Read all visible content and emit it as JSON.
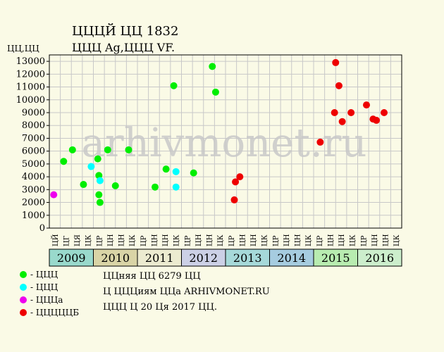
{
  "header": {
    "title": "ЦЦЦЙ ЦЦ 1832",
    "subtitle": "ЦЦЦ Ag,ЦЦЦ VF.",
    "y_unit": "ЦЦ,ЦЦ"
  },
  "watermark": "arhivmonet.ru",
  "legend": [
    {
      "label": "- ЦЦЦ",
      "color": "#00ee00"
    },
    {
      "label": "- ЦЦЦ",
      "color": "#00ffff"
    },
    {
      "label": "- ЦЦЦа",
      "color": "#ee00ee"
    },
    {
      "label": "- ЦЦЦЦЦБ",
      "color": "#ee0000"
    }
  ],
  "info": {
    "line1": "ЦЦняя ЦЦ 6279 ЦЦ",
    "line2": "Ц ЦЦЦиям ЦЦа ARHIVMONET.RU",
    "line3": "ЦЦЦ Ц 20 Ця 2017 ЦЦ."
  },
  "chart_data": {
    "type": "scatter",
    "ylim": [
      0,
      13500
    ],
    "yticks": [
      0,
      1000,
      2000,
      3000,
      4000,
      5000,
      6000,
      7000,
      8000,
      9000,
      10000,
      11000,
      12000,
      13000
    ],
    "months": [
      "ЦЙ",
      "ЦГ",
      "ЦЯ",
      "ЦК",
      "ЦР",
      "ЦН",
      "ЦН",
      "ЦК",
      "ЦР",
      "ЦН",
      "ЦН",
      "ЦК",
      "ЦР",
      "ЦН",
      "ЦН",
      "ЦК",
      "ЦР",
      "ЦН",
      "ЦН",
      "ЦК",
      "ЦР",
      "ЦН",
      "ЦН",
      "ЦК",
      "ЦР",
      "ЦН",
      "ЦН",
      "ЦК",
      "ЦР",
      "ЦН",
      "ЦН",
      "ЦК"
    ],
    "years": [
      {
        "label": "2009",
        "start": 0,
        "span": 4,
        "color": "#99d9cc"
      },
      {
        "label": "2010",
        "start": 4,
        "span": 4,
        "color": "#d9d4a6"
      },
      {
        "label": "2011",
        "start": 8,
        "span": 4,
        "color": "#ecebd0"
      },
      {
        "label": "2012",
        "start": 12,
        "span": 4,
        "color": "#ccd0e6"
      },
      {
        "label": "2013",
        "start": 16,
        "span": 4,
        "color": "#a6d9d9"
      },
      {
        "label": "2014",
        "start": 20,
        "span": 4,
        "color": "#a6cce0"
      },
      {
        "label": "2015",
        "start": 24,
        "span": 4,
        "color": "#b8ecb0"
      },
      {
        "label": "2016",
        "start": 28,
        "span": 4,
        "color": "#cceecc"
      }
    ],
    "series": [
      {
        "name": "- ЦЦЦ",
        "color": "#00ee00",
        "points": [
          [
            1.3,
            5200
          ],
          [
            2.1,
            6100
          ],
          [
            3.1,
            3400
          ],
          [
            4.4,
            5400
          ],
          [
            4.5,
            4100
          ],
          [
            4.5,
            2600
          ],
          [
            4.6,
            2000
          ],
          [
            5.3,
            6100
          ],
          [
            6.0,
            3300
          ],
          [
            7.2,
            6100
          ],
          [
            9.6,
            3200
          ],
          [
            10.6,
            4600
          ],
          [
            11.3,
            11100
          ],
          [
            13.1,
            4300
          ],
          [
            14.8,
            12600
          ],
          [
            15.1,
            10600
          ]
        ]
      },
      {
        "name": "- ЦЦЦ",
        "color": "#00ffff",
        "points": [
          [
            3.8,
            4800
          ],
          [
            4.6,
            3700
          ],
          [
            11.5,
            4400
          ],
          [
            11.5,
            3200
          ]
        ]
      },
      {
        "name": "- ЦЦЦа",
        "color": "#ee00ee",
        "points": [
          [
            0.4,
            2600
          ]
        ]
      },
      {
        "name": "- ЦЦЦЦЦБ",
        "color": "#ee0000",
        "points": [
          [
            16.8,
            2200
          ],
          [
            16.9,
            3600
          ],
          [
            17.3,
            4000
          ],
          [
            24.6,
            6700
          ],
          [
            25.9,
            9000
          ],
          [
            26.0,
            12900
          ],
          [
            26.3,
            11100
          ],
          [
            26.6,
            8300
          ],
          [
            27.4,
            9000
          ],
          [
            28.8,
            9600
          ],
          [
            29.4,
            8500
          ],
          [
            29.7,
            8400
          ],
          [
            30.4,
            9000
          ]
        ]
      }
    ]
  }
}
